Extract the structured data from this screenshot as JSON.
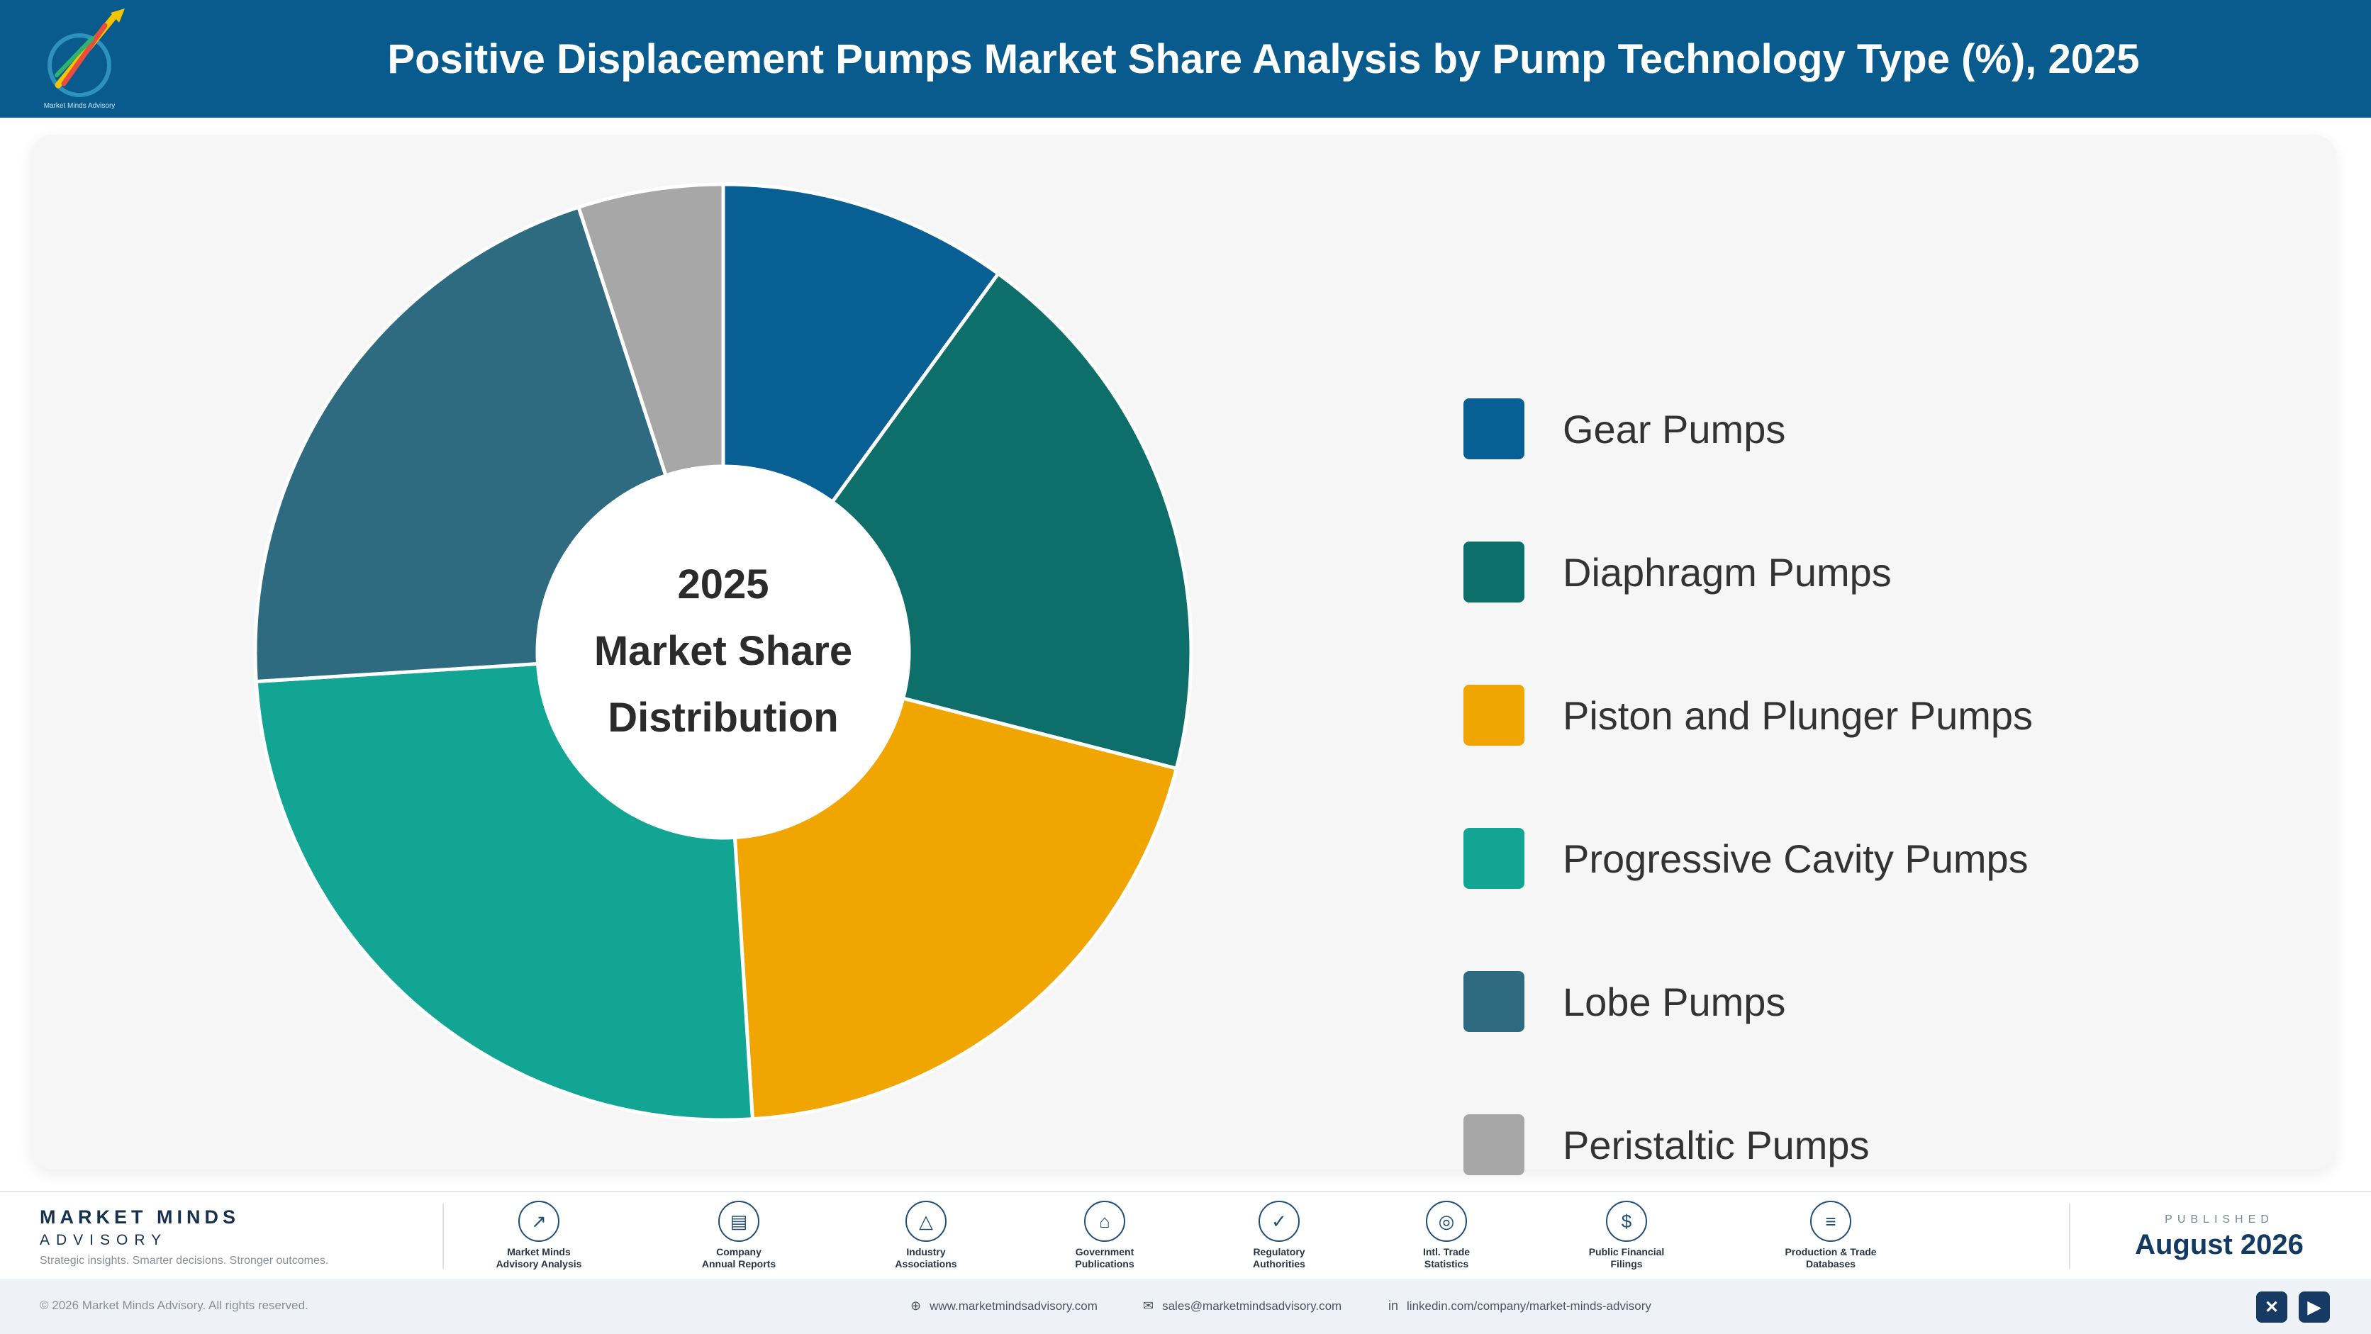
{
  "header": {
    "title": "Positive Displacement Pumps Market Share Analysis by Pump Technology Type (%), 2025",
    "logo_text": "Market Minds Advisory"
  },
  "chart_data": {
    "type": "pie",
    "donut": true,
    "title": "Positive Displacement Pumps Market Share Analysis by Pump Technology Type (%), 2025",
    "center_text": [
      "2025",
      "Market Share",
      "Distribution"
    ],
    "legend_position": "right",
    "categories": [
      "Gear Pumps",
      "Diaphragm Pumps",
      "Piston and Plunger Pumps",
      "Progressive Cavity Pumps",
      "Lobe Pumps",
      "Peristaltic Pumps"
    ],
    "values": [
      10,
      19,
      20,
      25,
      21,
      5
    ],
    "colors": [
      "#075f94",
      "#0d6e6a",
      "#f0a500",
      "#12a594",
      "#2f6b80",
      "#a7a7a7"
    ]
  },
  "footer": {
    "brand_name": "MARKET MINDS",
    "brand_sub": "ADVISORY",
    "brand_tagline": "Strategic insights. Smarter decisions. Stronger outcomes.",
    "sources": [
      {
        "icon": "trend-chart-icon",
        "glyph": "↗",
        "line1": "Market Minds",
        "line2": "Advisory Analysis"
      },
      {
        "icon": "document-icon",
        "glyph": "▤",
        "line1": "Company",
        "line2": "Annual Reports"
      },
      {
        "icon": "network-icon",
        "glyph": "△",
        "line1": "Industry",
        "line2": "Associations"
      },
      {
        "icon": "government-building-icon",
        "glyph": "⌂",
        "line1": "Government",
        "line2": "Publications"
      },
      {
        "icon": "shield-check-icon",
        "glyph": "✓",
        "line1": "Regulatory",
        "line2": "Authorities"
      },
      {
        "icon": "globe-icon",
        "glyph": "◎",
        "line1": "Intl. Trade",
        "line2": "Statistics"
      },
      {
        "icon": "dollar-coin-icon",
        "glyph": "$",
        "line1": "Public Financial",
        "line2": "Filings"
      },
      {
        "icon": "database-icon",
        "glyph": "≡",
        "line1": "Production & Trade",
        "line2": "Databases"
      }
    ],
    "published_label": "PUBLISHED",
    "published_date": "August 2026"
  },
  "bottom_bar": {
    "copyright": "© 2026 Market Minds Advisory. All rights reserved.",
    "website": "www.marketmindsadvisory.com",
    "email": "sales@marketmindsadvisory.com",
    "linkedin": "linkedin.com/company/market-minds-advisory"
  }
}
